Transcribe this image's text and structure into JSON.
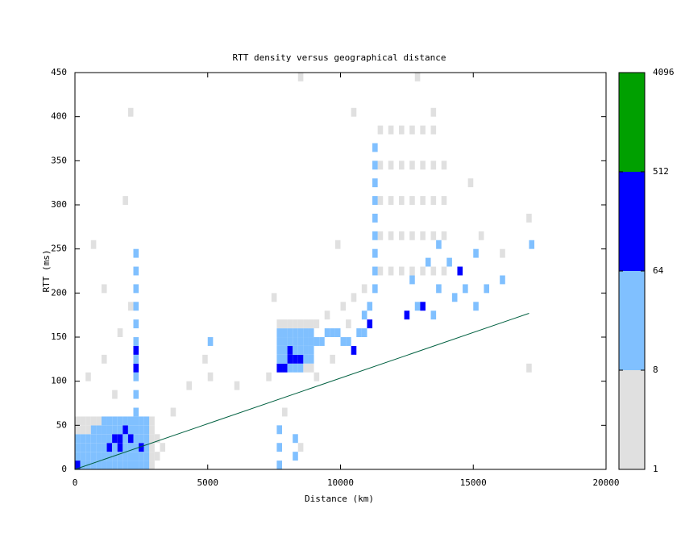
{
  "chart_data": {
    "type": "heatmap",
    "title": "RTT density versus geographical distance",
    "x_label": "Distance (km)",
    "y_label": "RTT (ms)",
    "xlim": [
      0,
      20000
    ],
    "xticks": [
      0,
      5000,
      10000,
      15000,
      20000
    ],
    "ylim": [
      0,
      450
    ],
    "yticks": [
      0,
      50,
      100,
      150,
      200,
      250,
      300,
      350,
      400,
      450
    ],
    "colorbar": {
      "log_scale": true,
      "levels": [
        1,
        8,
        64,
        512,
        4096
      ],
      "colors": [
        "#e0e0e0",
        "#80c0ff",
        "#0000ff",
        "#00a000"
      ]
    },
    "cells": [
      [
        0,
        0,
        100
      ],
      [
        200,
        0,
        20
      ],
      [
        400,
        0,
        20
      ],
      [
        600,
        0,
        20
      ],
      [
        800,
        0,
        20
      ],
      [
        1000,
        0,
        20
      ],
      [
        1200,
        0,
        20
      ],
      [
        1400,
        0,
        20
      ],
      [
        1600,
        0,
        20
      ],
      [
        1800,
        0,
        20
      ],
      [
        2000,
        0,
        20
      ],
      [
        2200,
        0,
        20
      ],
      [
        2400,
        0,
        20
      ],
      [
        2600,
        0,
        20
      ],
      [
        0,
        10,
        20
      ],
      [
        200,
        10,
        20
      ],
      [
        400,
        10,
        20
      ],
      [
        600,
        10,
        20
      ],
      [
        800,
        10,
        20
      ],
      [
        1000,
        10,
        20
      ],
      [
        1200,
        10,
        20
      ],
      [
        1400,
        10,
        20
      ],
      [
        1600,
        10,
        20
      ],
      [
        1800,
        10,
        20
      ],
      [
        2000,
        10,
        20
      ],
      [
        2200,
        10,
        20
      ],
      [
        2400,
        10,
        20
      ],
      [
        2600,
        10,
        20
      ],
      [
        0,
        20,
        20
      ],
      [
        200,
        20,
        20
      ],
      [
        400,
        20,
        20
      ],
      [
        600,
        20,
        20
      ],
      [
        800,
        20,
        20
      ],
      [
        1000,
        20,
        20
      ],
      [
        1200,
        20,
        100
      ],
      [
        1400,
        20,
        20
      ],
      [
        1600,
        20,
        100
      ],
      [
        1800,
        20,
        20
      ],
      [
        2000,
        20,
        20
      ],
      [
        2200,
        20,
        20
      ],
      [
        2400,
        20,
        100
      ],
      [
        2600,
        20,
        20
      ],
      [
        0,
        30,
        20
      ],
      [
        200,
        30,
        20
      ],
      [
        400,
        30,
        20
      ],
      [
        600,
        30,
        20
      ],
      [
        800,
        30,
        20
      ],
      [
        1000,
        30,
        20
      ],
      [
        1200,
        30,
        20
      ],
      [
        1400,
        30,
        100
      ],
      [
        1600,
        30,
        100
      ],
      [
        1800,
        30,
        20
      ],
      [
        2000,
        30,
        100
      ],
      [
        2200,
        30,
        20
      ],
      [
        2400,
        30,
        20
      ],
      [
        2600,
        30,
        20
      ],
      [
        0,
        40,
        4
      ],
      [
        200,
        40,
        4
      ],
      [
        400,
        40,
        4
      ],
      [
        600,
        40,
        20
      ],
      [
        800,
        40,
        20
      ],
      [
        1000,
        40,
        20
      ],
      [
        1200,
        40,
        20
      ],
      [
        1400,
        40,
        20
      ],
      [
        1600,
        40,
        20
      ],
      [
        1800,
        40,
        100
      ],
      [
        2000,
        40,
        20
      ],
      [
        2200,
        40,
        20
      ],
      [
        2400,
        40,
        20
      ],
      [
        2600,
        40,
        20
      ],
      [
        0,
        50,
        4
      ],
      [
        200,
        50,
        4
      ],
      [
        400,
        50,
        4
      ],
      [
        600,
        50,
        4
      ],
      [
        800,
        50,
        4
      ],
      [
        1000,
        50,
        20
      ],
      [
        1200,
        50,
        20
      ],
      [
        1400,
        50,
        20
      ],
      [
        1600,
        50,
        20
      ],
      [
        1800,
        50,
        20
      ],
      [
        2000,
        50,
        20
      ],
      [
        2200,
        50,
        20
      ],
      [
        2400,
        50,
        20
      ],
      [
        2600,
        50,
        20
      ],
      [
        2800,
        0,
        4
      ],
      [
        2800,
        10,
        4
      ],
      [
        2800,
        20,
        4
      ],
      [
        2800,
        30,
        4
      ],
      [
        2800,
        40,
        4
      ],
      [
        2800,
        50,
        4
      ],
      [
        3000,
        10,
        4
      ],
      [
        3000,
        30,
        4
      ],
      [
        3200,
        20,
        4
      ],
      [
        2200,
        60,
        20
      ],
      [
        2200,
        80,
        20
      ],
      [
        2200,
        100,
        20
      ],
      [
        2200,
        110,
        100
      ],
      [
        2200,
        120,
        20
      ],
      [
        2200,
        130,
        100
      ],
      [
        2200,
        140,
        20
      ],
      [
        2200,
        160,
        20
      ],
      [
        2200,
        180,
        20
      ],
      [
        2200,
        200,
        20
      ],
      [
        2200,
        220,
        20
      ],
      [
        2200,
        240,
        20
      ],
      [
        1000,
        120,
        4
      ],
      [
        1600,
        150,
        4
      ],
      [
        2000,
        180,
        4
      ],
      [
        600,
        250,
        4
      ],
      [
        1800,
        300,
        4
      ],
      [
        2000,
        400,
        4
      ],
      [
        1000,
        200,
        4
      ],
      [
        400,
        100,
        4
      ],
      [
        1400,
        80,
        4
      ],
      [
        7400,
        190,
        4
      ],
      [
        7200,
        100,
        4
      ],
      [
        9000,
        100,
        4
      ],
      [
        9600,
        120,
        4
      ],
      [
        9000,
        160,
        4
      ],
      [
        9400,
        170,
        4
      ],
      [
        10000,
        180,
        4
      ],
      [
        10400,
        190,
        4
      ],
      [
        10800,
        200,
        4
      ],
      [
        10200,
        160,
        4
      ],
      [
        7600,
        110,
        100
      ],
      [
        7800,
        110,
        100
      ],
      [
        8000,
        110,
        20
      ],
      [
        8200,
        110,
        20
      ],
      [
        8400,
        110,
        20
      ],
      [
        8600,
        110,
        4
      ],
      [
        8800,
        110,
        4
      ],
      [
        7600,
        120,
        20
      ],
      [
        7800,
        120,
        20
      ],
      [
        8000,
        120,
        100
      ],
      [
        8200,
        120,
        100
      ],
      [
        8400,
        120,
        100
      ],
      [
        8600,
        120,
        20
      ],
      [
        8800,
        120,
        20
      ],
      [
        7600,
        130,
        20
      ],
      [
        7800,
        130,
        20
      ],
      [
        8000,
        130,
        100
      ],
      [
        8200,
        130,
        20
      ],
      [
        8400,
        130,
        20
      ],
      [
        8600,
        130,
        20
      ],
      [
        8800,
        130,
        20
      ],
      [
        7600,
        140,
        20
      ],
      [
        7800,
        140,
        20
      ],
      [
        8000,
        140,
        20
      ],
      [
        8200,
        140,
        20
      ],
      [
        8400,
        140,
        20
      ],
      [
        8600,
        140,
        20
      ],
      [
        8800,
        140,
        20
      ],
      [
        7600,
        150,
        20
      ],
      [
        7800,
        150,
        20
      ],
      [
        8000,
        150,
        20
      ],
      [
        8200,
        150,
        20
      ],
      [
        8400,
        150,
        20
      ],
      [
        8600,
        150,
        20
      ],
      [
        8800,
        150,
        20
      ],
      [
        7600,
        160,
        4
      ],
      [
        7800,
        160,
        4
      ],
      [
        8000,
        160,
        4
      ],
      [
        8200,
        160,
        4
      ],
      [
        8400,
        160,
        4
      ],
      [
        8600,
        160,
        4
      ],
      [
        8800,
        160,
        4
      ],
      [
        9000,
        140,
        20
      ],
      [
        9200,
        140,
        20
      ],
      [
        9400,
        150,
        20
      ],
      [
        9600,
        150,
        20
      ],
      [
        9800,
        150,
        20
      ],
      [
        10000,
        140,
        20
      ],
      [
        10200,
        140,
        20
      ],
      [
        10400,
        130,
        100
      ],
      [
        10600,
        150,
        20
      ],
      [
        10800,
        150,
        20
      ],
      [
        11000,
        160,
        100
      ],
      [
        10800,
        170,
        20
      ],
      [
        11000,
        180,
        20
      ],
      [
        7600,
        0,
        20
      ],
      [
        7600,
        20,
        20
      ],
      [
        7600,
        40,
        20
      ],
      [
        8200,
        10,
        20
      ],
      [
        8200,
        30,
        20
      ],
      [
        7800,
        60,
        4
      ],
      [
        8400,
        20,
        4
      ],
      [
        11400,
        220,
        4
      ],
      [
        11800,
        220,
        4
      ],
      [
        12200,
        220,
        4
      ],
      [
        12600,
        220,
        4
      ],
      [
        13000,
        220,
        4
      ],
      [
        13400,
        220,
        4
      ],
      [
        13800,
        220,
        4
      ],
      [
        11400,
        260,
        4
      ],
      [
        11800,
        260,
        4
      ],
      [
        12200,
        260,
        4
      ],
      [
        12600,
        260,
        4
      ],
      [
        13000,
        260,
        4
      ],
      [
        13400,
        260,
        4
      ],
      [
        13800,
        260,
        4
      ],
      [
        11400,
        300,
        4
      ],
      [
        11800,
        300,
        4
      ],
      [
        12200,
        300,
        4
      ],
      [
        12600,
        300,
        4
      ],
      [
        13000,
        300,
        4
      ],
      [
        13400,
        300,
        4
      ],
      [
        13800,
        300,
        4
      ],
      [
        11400,
        340,
        4
      ],
      [
        11800,
        340,
        4
      ],
      [
        12200,
        340,
        4
      ],
      [
        12600,
        340,
        4
      ],
      [
        13000,
        340,
        4
      ],
      [
        13400,
        340,
        4
      ],
      [
        13800,
        340,
        4
      ],
      [
        11400,
        380,
        4
      ],
      [
        11800,
        380,
        4
      ],
      [
        12200,
        380,
        4
      ],
      [
        12600,
        380,
        4
      ],
      [
        13000,
        380,
        4
      ],
      [
        13400,
        380,
        4
      ],
      [
        11200,
        200,
        20
      ],
      [
        11200,
        220,
        20
      ],
      [
        11200,
        240,
        20
      ],
      [
        11200,
        260,
        20
      ],
      [
        11200,
        280,
        20
      ],
      [
        11200,
        300,
        20
      ],
      [
        11200,
        320,
        20
      ],
      [
        11200,
        340,
        20
      ],
      [
        11200,
        360,
        20
      ],
      [
        12400,
        170,
        100
      ],
      [
        12800,
        180,
        20
      ],
      [
        13000,
        180,
        100
      ],
      [
        13400,
        170,
        20
      ],
      [
        13600,
        200,
        20
      ],
      [
        14000,
        230,
        20
      ],
      [
        14400,
        220,
        100
      ],
      [
        14600,
        200,
        20
      ],
      [
        15000,
        180,
        20
      ],
      [
        15400,
        200,
        20
      ],
      [
        16000,
        210,
        20
      ],
      [
        15000,
        240,
        20
      ],
      [
        13600,
        250,
        20
      ],
      [
        12600,
        210,
        20
      ],
      [
        17100,
        250,
        20
      ],
      [
        14200,
        190,
        20
      ],
      [
        13200,
        230,
        20
      ],
      [
        16000,
        240,
        4
      ],
      [
        17000,
        280,
        4
      ],
      [
        15200,
        260,
        4
      ],
      [
        14800,
        320,
        4
      ],
      [
        17000,
        110,
        4
      ],
      [
        12800,
        440,
        4
      ],
      [
        13400,
        400,
        4
      ],
      [
        8400,
        440,
        4
      ],
      [
        10400,
        400,
        4
      ],
      [
        9800,
        250,
        4
      ],
      [
        5000,
        140,
        20
      ],
      [
        4200,
        90,
        4
      ],
      [
        5000,
        100,
        4
      ],
      [
        6000,
        90,
        4
      ],
      [
        3600,
        60,
        4
      ],
      [
        4800,
        120,
        4
      ]
    ],
    "reference_line": {
      "color": "#006040",
      "x": [
        0,
        17100
      ],
      "values": [
        0,
        177
      ]
    }
  }
}
